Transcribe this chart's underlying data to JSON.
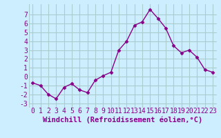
{
  "x": [
    0,
    1,
    2,
    3,
    4,
    5,
    6,
    7,
    8,
    9,
    10,
    11,
    12,
    13,
    14,
    15,
    16,
    17,
    18,
    19,
    20,
    21,
    22,
    23
  ],
  "y": [
    -0.7,
    -1.0,
    -2.0,
    -2.5,
    -1.2,
    -0.8,
    -1.5,
    -1.8,
    -0.4,
    0.1,
    0.5,
    3.0,
    4.0,
    5.8,
    6.2,
    7.6,
    6.6,
    5.5,
    3.5,
    2.7,
    3.0,
    2.2,
    0.8,
    0.5
  ],
  "line_color": "#880088",
  "marker": "D",
  "markersize": 2.5,
  "linewidth": 1.0,
  "bg_color": "#cceeff",
  "grid_color": "#aacccc",
  "xlabel": "Windchill (Refroidissement éolien,°C)",
  "xlabel_fontsize": 7.5,
  "xtick_labels": [
    "0",
    "1",
    "2",
    "3",
    "4",
    "5",
    "6",
    "7",
    "8",
    "9",
    "10",
    "11",
    "12",
    "13",
    "14",
    "15",
    "16",
    "17",
    "18",
    "19",
    "20",
    "21",
    "22",
    "23"
  ],
  "ytick_values": [
    -3,
    -2,
    -1,
    0,
    1,
    2,
    3,
    4,
    5,
    6,
    7
  ],
  "ylim": [
    -3.5,
    8.2
  ],
  "xlim": [
    -0.5,
    23.5
  ],
  "tick_fontsize": 7
}
